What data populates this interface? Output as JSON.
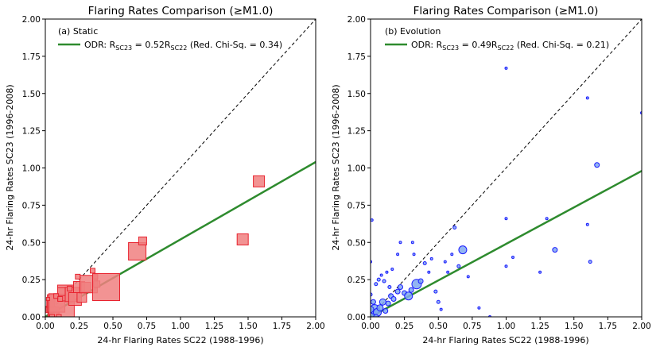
{
  "chart_data": [
    {
      "type": "scatter",
      "title": "Flaring Rates Comparison (≥M1.0)",
      "xlabel": "24-hr Flaring Rates SC22 (1988-1996)",
      "ylabel": "24-hr Flaring Rates SC23 (1996-2008)",
      "xlim": [
        0,
        2
      ],
      "ylim": [
        0,
        2
      ],
      "xticks": [
        "0.00",
        "0.25",
        "0.50",
        "0.75",
        "1.00",
        "1.25",
        "1.50",
        "1.75",
        "2.00"
      ],
      "yticks": [
        "0.00",
        "0.25",
        "0.50",
        "0.75",
        "1.00",
        "1.25",
        "1.50",
        "1.75",
        "2.00"
      ],
      "panel_label": "(a) Static",
      "legend": {
        "position": "top-left",
        "prefix": "ODR: R",
        "sub1": "SC23",
        "mid": " = 0.52R",
        "sub2": "SC22",
        "suffix": " (Red. Chi-Sq. = 0.34)"
      },
      "fit_slope": 0.52,
      "reference_line": "y = x (dashed)",
      "marker": "square",
      "marker_fill": "#f08080",
      "marker_stroke": "#e8232f",
      "fit_color": "#2e8b2e",
      "points": [
        {
          "x": 0.03,
          "y": 0.05,
          "s": 4
        },
        {
          "x": 0.04,
          "y": 0.09,
          "s": 5
        },
        {
          "x": 0.06,
          "y": 0.03,
          "s": 7
        },
        {
          "x": 0.08,
          "y": 0.09,
          "s": 11
        },
        {
          "x": 0.12,
          "y": 0.07,
          "s": 16
        },
        {
          "x": 0.15,
          "y": 0.16,
          "s": 10
        },
        {
          "x": 0.12,
          "y": 0.17,
          "s": 5
        },
        {
          "x": 0.2,
          "y": 0.15,
          "s": 9
        },
        {
          "x": 0.22,
          "y": 0.12,
          "s": 8
        },
        {
          "x": 0.25,
          "y": 0.2,
          "s": 7
        },
        {
          "x": 0.27,
          "y": 0.13,
          "s": 6
        },
        {
          "x": 0.3,
          "y": 0.2,
          "s": 6
        },
        {
          "x": 0.32,
          "y": 0.22,
          "s": 11
        },
        {
          "x": 0.35,
          "y": 0.31,
          "s": 3
        },
        {
          "x": 0.37,
          "y": 0.27,
          "s": 3
        },
        {
          "x": 0.38,
          "y": 0.22,
          "s": 4
        },
        {
          "x": 0.45,
          "y": 0.2,
          "s": 17
        },
        {
          "x": 0.08,
          "y": 0.14,
          "s": 3
        },
        {
          "x": 0.11,
          "y": 0.12,
          "s": 3
        },
        {
          "x": 0.18,
          "y": 0.19,
          "s": 3
        },
        {
          "x": 0.02,
          "y": 0.12,
          "s": 2
        },
        {
          "x": 0.05,
          "y": 0.0,
          "s": 3
        },
        {
          "x": 0.1,
          "y": 0.0,
          "s": 3
        },
        {
          "x": 0.24,
          "y": 0.27,
          "s": 3
        },
        {
          "x": 0.68,
          "y": 0.44,
          "s": 11
        },
        {
          "x": 0.72,
          "y": 0.51,
          "s": 5
        },
        {
          "x": 1.46,
          "y": 0.52,
          "s": 7
        },
        {
          "x": 1.58,
          "y": 0.91,
          "s": 7
        }
      ]
    },
    {
      "type": "scatter",
      "title": "Flaring Rates Comparison (≥M1.0)",
      "xlabel": "24-hr Flaring Rates SC22 (1988-1996)",
      "ylabel": "24-hr Flaring Rates SC23 (1996-2008)",
      "xlim": [
        0,
        2
      ],
      "ylim": [
        0,
        2
      ],
      "xticks": [
        "0.00",
        "0.25",
        "0.50",
        "0.75",
        "1.00",
        "1.25",
        "1.50",
        "1.75",
        "2.00"
      ],
      "yticks": [
        "0.00",
        "0.25",
        "0.50",
        "0.75",
        "1.00",
        "1.25",
        "1.50",
        "1.75",
        "2.00"
      ],
      "panel_label": "(b) Evolution",
      "legend": {
        "position": "top-left",
        "prefix": "ODR: R",
        "sub1": "SC23",
        "mid": " = 0.49R",
        "sub2": "SC22",
        "suffix": " (Red. Chi-Sq. = 0.21)"
      },
      "fit_slope": 0.49,
      "reference_line": "y = x (dashed)",
      "marker": "circle",
      "marker_fill": "#7fa8f0",
      "marker_stroke": "#1a1aff",
      "fit_color": "#2e8b2e",
      "points": [
        {
          "x": 0.01,
          "y": 0.02,
          "s": 5
        },
        {
          "x": 0.03,
          "y": 0.05,
          "s": 6
        },
        {
          "x": 0.05,
          "y": 0.03,
          "s": 5
        },
        {
          "x": 0.07,
          "y": 0.06,
          "s": 4
        },
        {
          "x": 0.02,
          "y": 0.1,
          "s": 3
        },
        {
          "x": 0.09,
          "y": 0.1,
          "s": 4
        },
        {
          "x": 0.11,
          "y": 0.04,
          "s": 3
        },
        {
          "x": 0.13,
          "y": 0.09,
          "s": 3
        },
        {
          "x": 0.15,
          "y": 0.14,
          "s": 3
        },
        {
          "x": 0.17,
          "y": 0.12,
          "s": 3
        },
        {
          "x": 0.2,
          "y": 0.17,
          "s": 3
        },
        {
          "x": 0.04,
          "y": 0.22,
          "s": 2
        },
        {
          "x": 0.06,
          "y": 0.25,
          "s": 2
        },
        {
          "x": 0.1,
          "y": 0.24,
          "s": 2
        },
        {
          "x": 0.12,
          "y": 0.3,
          "s": 1.5
        },
        {
          "x": 0.0,
          "y": 0.15,
          "s": 2
        },
        {
          "x": 0.0,
          "y": 0.37,
          "s": 1.5
        },
        {
          "x": 0.01,
          "y": 0.65,
          "s": 1.5
        },
        {
          "x": 0.16,
          "y": 0.32,
          "s": 1.5
        },
        {
          "x": 0.2,
          "y": 0.42,
          "s": 1.5
        },
        {
          "x": 0.22,
          "y": 0.2,
          "s": 3
        },
        {
          "x": 0.25,
          "y": 0.16,
          "s": 3
        },
        {
          "x": 0.28,
          "y": 0.14,
          "s": 5
        },
        {
          "x": 0.3,
          "y": 0.18,
          "s": 3
        },
        {
          "x": 0.34,
          "y": 0.22,
          "s": 6
        },
        {
          "x": 0.37,
          "y": 0.24,
          "s": 3
        },
        {
          "x": 0.31,
          "y": 0.5,
          "s": 1.5
        },
        {
          "x": 0.32,
          "y": 0.42,
          "s": 1.5
        },
        {
          "x": 0.4,
          "y": 0.36,
          "s": 2
        },
        {
          "x": 0.43,
          "y": 0.3,
          "s": 1.5
        },
        {
          "x": 0.45,
          "y": 0.39,
          "s": 1.5
        },
        {
          "x": 0.48,
          "y": 0.17,
          "s": 2
        },
        {
          "x": 0.5,
          "y": 0.1,
          "s": 2
        },
        {
          "x": 0.52,
          "y": 0.05,
          "s": 1.5
        },
        {
          "x": 0.55,
          "y": 0.37,
          "s": 1.5
        },
        {
          "x": 0.57,
          "y": 0.3,
          "s": 1.5
        },
        {
          "x": 0.6,
          "y": 0.42,
          "s": 1.5
        },
        {
          "x": 0.62,
          "y": 0.6,
          "s": 2
        },
        {
          "x": 0.65,
          "y": 0.34,
          "s": 2
        },
        {
          "x": 0.68,
          "y": 0.45,
          "s": 5
        },
        {
          "x": 0.72,
          "y": 0.27,
          "s": 1.5
        },
        {
          "x": 0.8,
          "y": 0.06,
          "s": 1.5
        },
        {
          "x": 0.88,
          "y": 0.0,
          "s": 1.5
        },
        {
          "x": 1.0,
          "y": 1.67,
          "s": 1.5
        },
        {
          "x": 1.0,
          "y": 0.66,
          "s": 1.5
        },
        {
          "x": 1.0,
          "y": 0.34,
          "s": 1.5
        },
        {
          "x": 1.05,
          "y": 0.4,
          "s": 1.5
        },
        {
          "x": 1.25,
          "y": 0.3,
          "s": 1.5
        },
        {
          "x": 1.3,
          "y": 0.66,
          "s": 1.5
        },
        {
          "x": 1.36,
          "y": 0.45,
          "s": 3
        },
        {
          "x": 1.6,
          "y": 1.47,
          "s": 1.5
        },
        {
          "x": 1.62,
          "y": 0.37,
          "s": 2
        },
        {
          "x": 1.67,
          "y": 1.02,
          "s": 3
        },
        {
          "x": 2.0,
          "y": 1.37,
          "s": 1.5
        },
        {
          "x": 1.6,
          "y": 0.62,
          "s": 1.5
        },
        {
          "x": 0.22,
          "y": 0.5,
          "s": 1.5
        },
        {
          "x": 0.08,
          "y": 0.28,
          "s": 1.5
        },
        {
          "x": 0.14,
          "y": 0.2,
          "s": 2
        },
        {
          "x": 0.0,
          "y": 0.05,
          "s": 4
        },
        {
          "x": 0.04,
          "y": 0.0,
          "s": 3
        }
      ]
    }
  ]
}
